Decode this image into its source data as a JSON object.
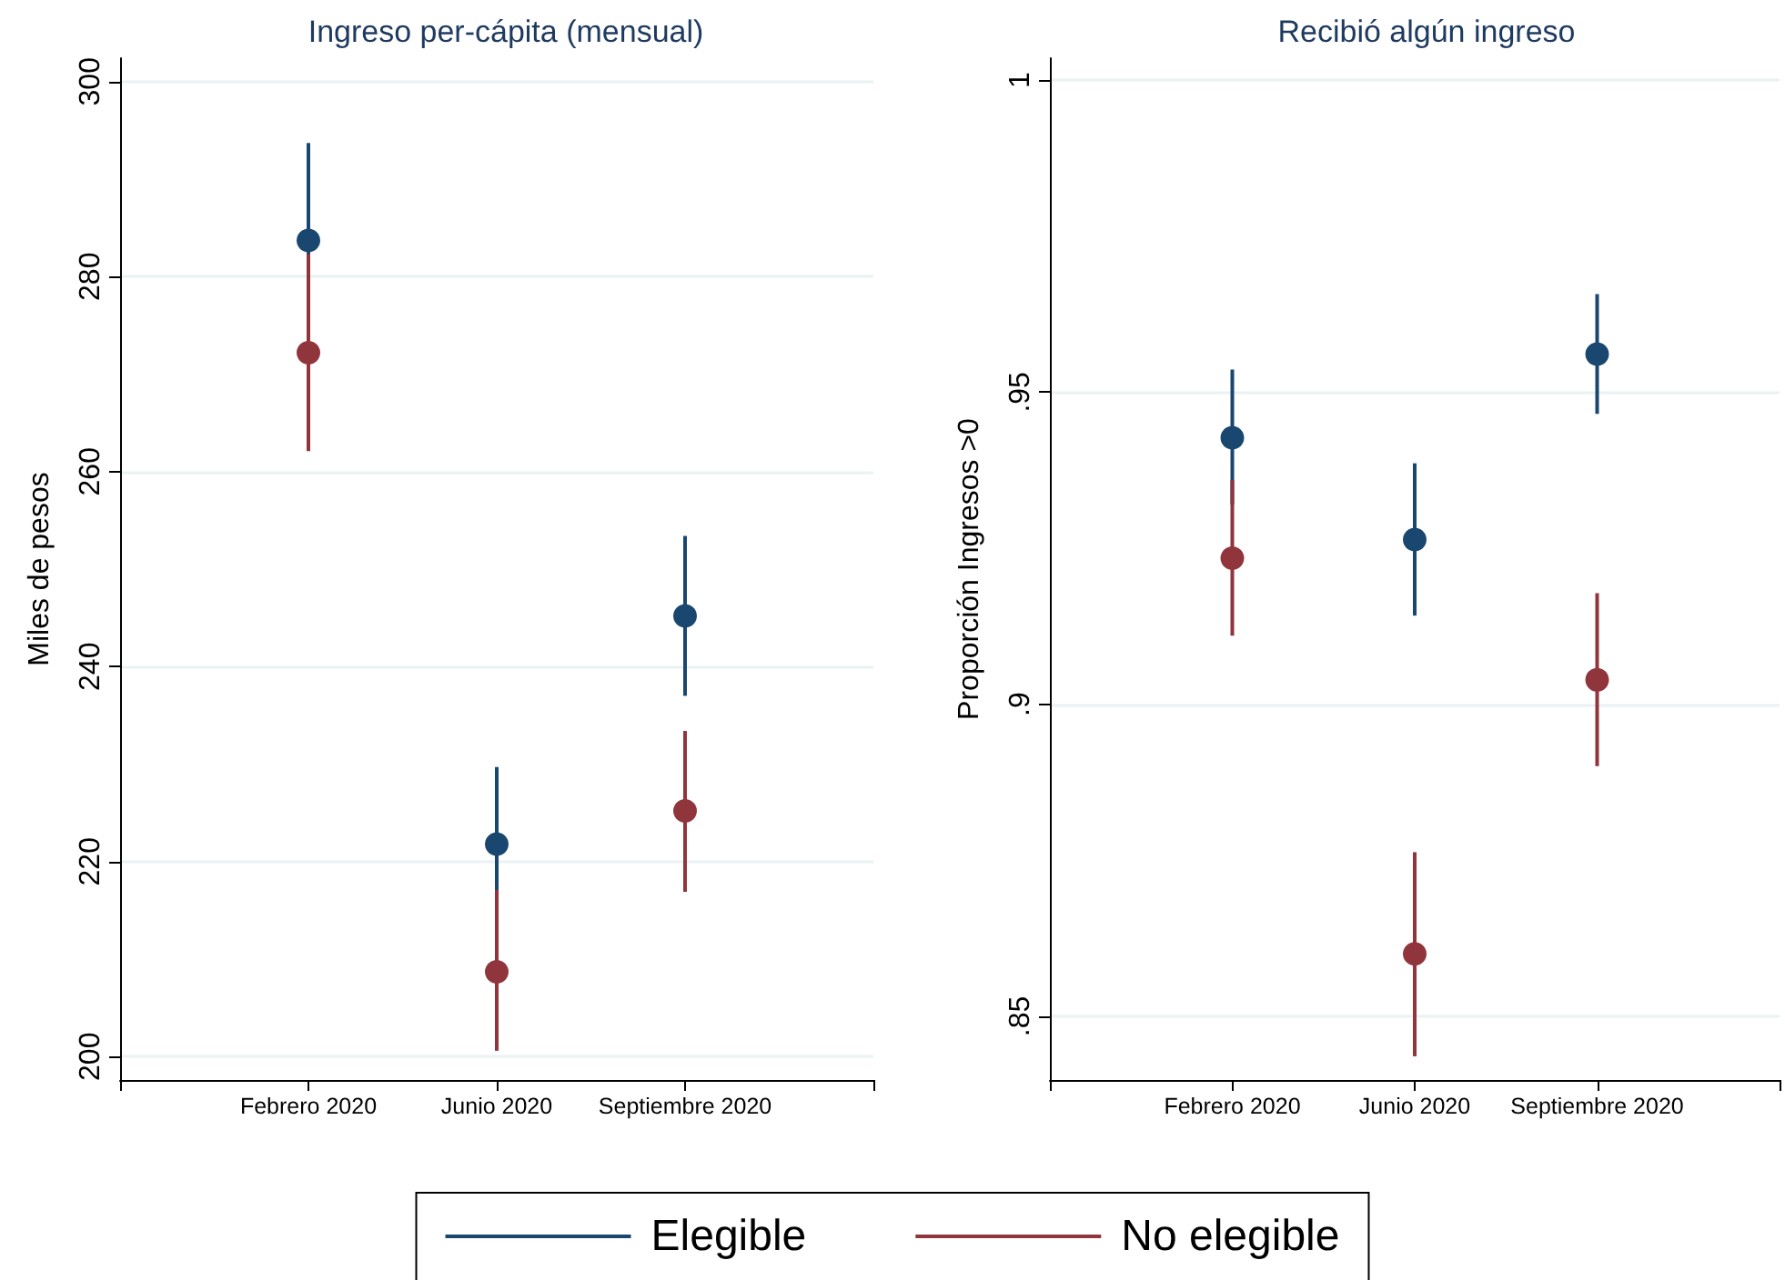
{
  "chart_data": [
    {
      "type": "scatter",
      "title": "Ingreso per-cápita (mensual)",
      "ylabel": "Miles de pesos",
      "categories": [
        "Febrero 2020",
        "Junio 2020",
        "Septiembre 2020"
      ],
      "series": [
        {
          "name": "Elegible",
          "color": "#1a476f",
          "values": [
            283.7,
            221.8,
            245.2
          ],
          "errors": [
            [
              273.7,
              293.7
            ],
            [
              214.0,
              229.7
            ],
            [
              237.0,
              253.4
            ]
          ]
        },
        {
          "name": "No elegible",
          "color": "#90353b",
          "values": [
            272.2,
            208.7,
            225.2
          ],
          "errors": [
            [
              262.1,
              282.3
            ],
            [
              200.6,
              217.1
            ],
            [
              216.9,
              233.4
            ]
          ]
        }
      ],
      "ylim": [
        197.6,
        302.4
      ],
      "yticks": [
        200,
        220,
        240,
        260,
        280,
        300
      ],
      "grid": "y",
      "legend": "bottom",
      "marker": "circle"
    },
    {
      "type": "scatter",
      "title": "Recibió algún ingreso",
      "ylabel": "Proporción Ingresos >0",
      "categories": [
        "Febrero 2020",
        "Junio 2020",
        "Septiembre 2020"
      ],
      "series": [
        {
          "name": "Elegible",
          "color": "#1a476f",
          "values": [
            0.9427,
            0.9264,
            0.9561
          ],
          "errors": [
            [
              0.932,
              0.9536
            ],
            [
              0.9142,
              0.9386
            ],
            [
              0.9465,
              0.9657
            ]
          ]
        },
        {
          "name": "No elegible",
          "color": "#90353b",
          "values": [
            0.9234,
            0.86,
            0.9039
          ],
          "errors": [
            [
              0.911,
              0.9359
            ],
            [
              0.8436,
              0.8763
            ],
            [
              0.8901,
              0.9178
            ]
          ]
        }
      ],
      "ylim": [
        0.8398,
        1.0035
      ],
      "yticks": [
        {
          "value": 0.85,
          "label": ".85"
        },
        {
          "value": 0.9,
          "label": ".9"
        },
        {
          "value": 0.95,
          "label": ".95"
        },
        {
          "value": 1,
          "label": "1"
        }
      ],
      "grid": "y",
      "legend": "bottom",
      "marker": "circle"
    }
  ]
}
